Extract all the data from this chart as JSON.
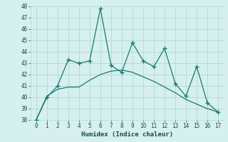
{
  "xlabel": "Humidex (Indice chaleur)",
  "x": [
    0,
    1,
    2,
    3,
    4,
    5,
    6,
    7,
    8,
    9,
    10,
    11,
    12,
    13,
    14,
    15,
    16,
    17
  ],
  "y_main": [
    38,
    40,
    41,
    43.3,
    43,
    43.2,
    47.8,
    42.8,
    42.2,
    44.8,
    43.2,
    42.7,
    44.3,
    41.2,
    40.1,
    42.7,
    39.5,
    38.7
  ],
  "y_trend": [
    38,
    40.1,
    40.7,
    40.9,
    40.9,
    41.5,
    42.0,
    42.3,
    42.4,
    42.2,
    41.8,
    41.4,
    40.9,
    40.4,
    39.8,
    39.4,
    39.0,
    38.7
  ],
  "ylim": [
    38,
    48
  ],
  "xlim": [
    -0.5,
    17.5
  ],
  "yticks": [
    38,
    39,
    40,
    41,
    42,
    43,
    44,
    45,
    46,
    47,
    48
  ],
  "xticks": [
    0,
    1,
    2,
    3,
    4,
    5,
    6,
    7,
    8,
    9,
    10,
    11,
    12,
    13,
    14,
    15,
    16,
    17
  ],
  "line_color": "#1a7a6e",
  "bg_color": "#d6f0ef",
  "grid_color": "#b0d8d5",
  "font_color": "#1a4a4a",
  "font_family": "monospace"
}
